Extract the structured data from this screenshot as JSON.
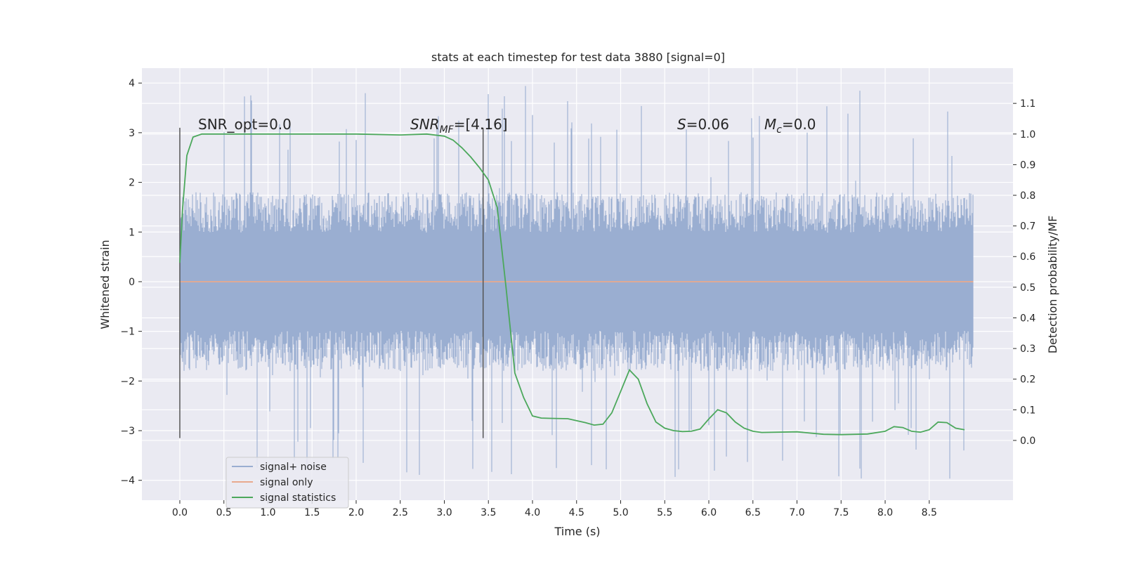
{
  "chart_data": {
    "type": "line",
    "title": "stats at each timestep for test data 3880 [signal=0]",
    "xlabel": "Time (s)",
    "ylabel_left": "Whitened strain",
    "ylabel_right": "Detection probability/MF",
    "xlim": [
      -0.43,
      9.45
    ],
    "ylim_left": [
      -4.4,
      4.3
    ],
    "ylim_right": [
      -0.195,
      1.215
    ],
    "x_ticks": [
      "0.0",
      "0.5",
      "1.0",
      "1.5",
      "2.0",
      "2.5",
      "3.0",
      "3.5",
      "4.0",
      "4.5",
      "5.0",
      "5.5",
      "6.0",
      "6.5",
      "7.0",
      "7.5",
      "8.0",
      "8.5"
    ],
    "y_ticks_left": [
      "−4",
      "−3",
      "−2",
      "−1",
      "0",
      "1",
      "2",
      "3",
      "4"
    ],
    "y_ticks_right": [
      "0.0",
      "0.1",
      "0.2",
      "0.3",
      "0.4",
      "0.5",
      "0.6",
      "0.7",
      "0.8",
      "0.9",
      "1.0",
      "1.1"
    ],
    "grid": true,
    "legend_position": "lower-left",
    "annotations": [
      {
        "text": "SNR_opt=0.0"
      },
      {
        "text": "SNR",
        "sub": "MF",
        "suffix": "=[4.16]"
      },
      {
        "text": "S",
        "suffix": "=0.06"
      },
      {
        "text": "M",
        "sub": "c",
        "suffix": "=0.0"
      }
    ],
    "vertical_markers": [
      0.0,
      3.44
    ],
    "series": [
      {
        "name": "signal+ noise",
        "axis": "left",
        "color": "#9aaed1",
        "x_range": [
          0.0,
          9.0
        ],
        "typical_band": [
          -1.8,
          1.8
        ],
        "extremes": [
          -4.0,
          3.95
        ]
      },
      {
        "name": "signal only",
        "axis": "left",
        "color": "#e8a98e",
        "x": [
          0.0,
          9.0
        ],
        "y": [
          0.0,
          0.0
        ]
      },
      {
        "name": "signal statistics",
        "axis": "right",
        "color": "#4ca85c",
        "x": [
          0.0,
          0.03,
          0.08,
          0.15,
          0.25,
          0.5,
          1.0,
          1.5,
          2.0,
          2.5,
          2.8,
          3.0,
          3.1,
          3.2,
          3.3,
          3.4,
          3.5,
          3.6,
          3.7,
          3.8,
          3.9,
          4.0,
          4.1,
          4.2,
          4.4,
          4.6,
          4.7,
          4.8,
          4.9,
          5.0,
          5.1,
          5.2,
          5.3,
          5.4,
          5.5,
          5.6,
          5.7,
          5.8,
          5.9,
          6.0,
          6.1,
          6.2,
          6.3,
          6.4,
          6.5,
          6.6,
          7.0,
          7.3,
          7.5,
          7.8,
          8.0,
          8.1,
          8.2,
          8.3,
          8.4,
          8.5,
          8.6,
          8.7,
          8.8,
          8.9
        ],
        "y": [
          0.58,
          0.75,
          0.93,
          0.99,
          1.0,
          1.0,
          1.0,
          1.0,
          1.0,
          0.997,
          1.0,
          0.993,
          0.98,
          0.955,
          0.925,
          0.89,
          0.85,
          0.76,
          0.5,
          0.22,
          0.14,
          0.08,
          0.073,
          0.072,
          0.071,
          0.058,
          0.05,
          0.053,
          0.09,
          0.16,
          0.23,
          0.2,
          0.12,
          0.06,
          0.04,
          0.032,
          0.029,
          0.03,
          0.037,
          0.07,
          0.1,
          0.09,
          0.06,
          0.04,
          0.03,
          0.026,
          0.028,
          0.02,
          0.019,
          0.021,
          0.03,
          0.045,
          0.042,
          0.03,
          0.027,
          0.035,
          0.06,
          0.058,
          0.04,
          0.035
        ]
      }
    ]
  }
}
